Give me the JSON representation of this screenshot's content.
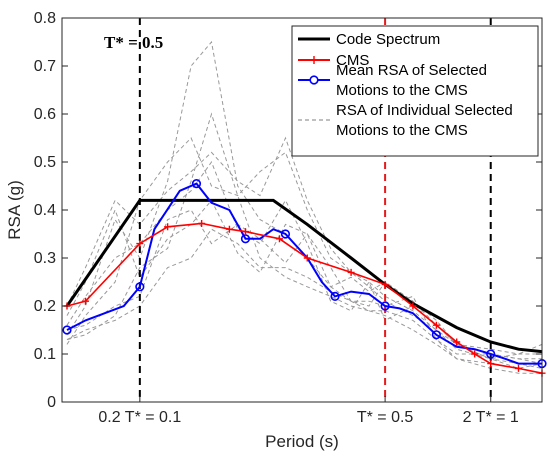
{
  "chart_data": {
    "type": "line",
    "xlabel": "Period (s)",
    "ylabel": "RSA (g)",
    "xlim": [
      0.06,
      1.4
    ],
    "ylim": [
      0,
      0.8
    ],
    "x_scale": "log",
    "grid": false,
    "legend_position": "top-right",
    "y_ticks": [
      0,
      0.1,
      0.2,
      0.3,
      0.4,
      0.5,
      0.6,
      0.7,
      0.8
    ],
    "y_tick_labels": [
      "0",
      "0.1",
      "0.2",
      "0.3",
      "0.4",
      "0.5",
      "0.6",
      "0.7",
      "0.8"
    ],
    "x_ticks": [
      {
        "value": 0.1,
        "label": "0.2 T* = 0.1"
      },
      {
        "value": 0.5,
        "label": "T* = 0.5"
      },
      {
        "value": 1.0,
        "label": "2 T* = 1"
      }
    ],
    "annotation": "T* = 0.5",
    "vlines": [
      {
        "x": 0.1,
        "color": "#000000"
      },
      {
        "x": 0.5,
        "color": "#e41a1c"
      },
      {
        "x": 1.0,
        "color": "#000000"
      }
    ],
    "series": [
      {
        "name": "Code Spectrum",
        "color": "#000000",
        "x": [
          0.062,
          0.1,
          0.24,
          0.3,
          0.4,
          0.5,
          0.6,
          0.8,
          1.0,
          1.2,
          1.4
        ],
        "y": [
          0.2,
          0.42,
          0.42,
          0.37,
          0.3,
          0.245,
          0.205,
          0.155,
          0.125,
          0.11,
          0.105
        ]
      },
      {
        "name": "CMS",
        "color": "#ff0000",
        "x": [
          0.062,
          0.07,
          0.1,
          0.12,
          0.15,
          0.18,
          0.2,
          0.25,
          0.3,
          0.4,
          0.5,
          0.6,
          0.7,
          0.8,
          0.9,
          1.0,
          1.2,
          1.4
        ],
        "y": [
          0.2,
          0.21,
          0.33,
          0.365,
          0.372,
          0.36,
          0.355,
          0.34,
          0.3,
          0.27,
          0.245,
          0.2,
          0.16,
          0.125,
          0.1,
          0.08,
          0.07,
          0.06
        ]
      },
      {
        "name": "Mean RSA of Selected Motions to the CMS",
        "color": "#0000ff",
        "x": [
          0.062,
          0.07,
          0.09,
          0.1,
          0.11,
          0.13,
          0.145,
          0.16,
          0.18,
          0.2,
          0.22,
          0.24,
          0.26,
          0.3,
          0.33,
          0.36,
          0.4,
          0.45,
          0.5,
          0.55,
          0.6,
          0.7,
          0.8,
          0.9,
          1.0,
          1.1,
          1.2,
          1.4
        ],
        "y": [
          0.15,
          0.17,
          0.2,
          0.24,
          0.36,
          0.44,
          0.455,
          0.415,
          0.4,
          0.34,
          0.34,
          0.36,
          0.35,
          0.3,
          0.25,
          0.22,
          0.23,
          0.225,
          0.2,
          0.195,
          0.185,
          0.14,
          0.115,
          0.11,
          0.1,
          0.09,
          0.08,
          0.08
        ]
      }
    ],
    "individual_series": {
      "name": "RSA of Individual Selected Motions to the CMS",
      "color": "#999999",
      "x": [
        0.062,
        0.07,
        0.085,
        0.1,
        0.12,
        0.14,
        0.16,
        0.19,
        0.22,
        0.26,
        0.3,
        0.35,
        0.4,
        0.45,
        0.5,
        0.6,
        0.7,
        0.8,
        1.0,
        1.2,
        1.4
      ],
      "curves": [
        [
          0.14,
          0.2,
          0.38,
          0.3,
          0.46,
          0.7,
          0.75,
          0.45,
          0.38,
          0.35,
          0.3,
          0.24,
          0.26,
          0.23,
          0.25,
          0.21,
          0.16,
          0.12,
          0.1,
          0.09,
          0.08
        ],
        [
          0.12,
          0.18,
          0.25,
          0.42,
          0.5,
          0.55,
          0.45,
          0.43,
          0.48,
          0.52,
          0.4,
          0.3,
          0.27,
          0.24,
          0.21,
          0.18,
          0.15,
          0.12,
          0.09,
          0.08,
          0.07
        ],
        [
          0.15,
          0.16,
          0.2,
          0.22,
          0.38,
          0.4,
          0.33,
          0.37,
          0.34,
          0.29,
          0.35,
          0.28,
          0.21,
          0.21,
          0.2,
          0.22,
          0.13,
          0.1,
          0.1,
          0.09,
          0.09
        ],
        [
          0.13,
          0.14,
          0.18,
          0.28,
          0.32,
          0.46,
          0.6,
          0.43,
          0.3,
          0.26,
          0.24,
          0.22,
          0.2,
          0.19,
          0.19,
          0.17,
          0.13,
          0.09,
          0.08,
          0.07,
          0.06
        ],
        [
          0.18,
          0.25,
          0.4,
          0.26,
          0.34,
          0.37,
          0.42,
          0.31,
          0.27,
          0.37,
          0.35,
          0.24,
          0.21,
          0.2,
          0.25,
          0.21,
          0.17,
          0.12,
          0.11,
          0.1,
          0.1
        ],
        [
          0.16,
          0.22,
          0.3,
          0.33,
          0.4,
          0.44,
          0.5,
          0.36,
          0.33,
          0.42,
          0.33,
          0.21,
          0.19,
          0.25,
          0.17,
          0.2,
          0.16,
          0.12,
          0.09,
          0.07,
          0.08
        ],
        [
          0.13,
          0.15,
          0.17,
          0.2,
          0.28,
          0.3,
          0.36,
          0.33,
          0.28,
          0.28,
          0.26,
          0.23,
          0.21,
          0.19,
          0.18,
          0.15,
          0.12,
          0.09,
          0.07,
          0.06,
          0.06
        ],
        [
          0.2,
          0.28,
          0.42,
          0.37,
          0.44,
          0.48,
          0.52,
          0.46,
          0.43,
          0.55,
          0.42,
          0.32,
          0.27,
          0.25,
          0.22,
          0.19,
          0.15,
          0.11,
          0.09,
          0.1,
          0.12
        ]
      ]
    },
    "legend": [
      {
        "label_lines": [
          "Code Spectrum"
        ],
        "color": "#000000",
        "style": "thick-solid"
      },
      {
        "label_lines": [
          "CMS"
        ],
        "color": "#ff0000",
        "style": "plus-marker"
      },
      {
        "label_lines": [
          "Mean RSA of Selected",
          "Motions to the CMS"
        ],
        "color": "#0000ff",
        "style": "circle-marker"
      },
      {
        "label_lines": [
          "RSA of Individual Selected",
          "Motions to the CMS"
        ],
        "color": "#999999",
        "style": "dashed"
      }
    ]
  }
}
